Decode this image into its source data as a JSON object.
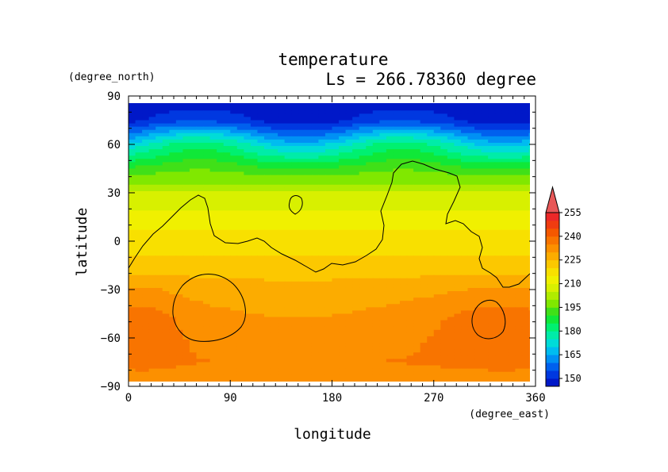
{
  "chart_data": {
    "type": "heatmap",
    "title": "temperature",
    "subtitle": "Ls = 266.78360 degree",
    "xlabel": "longitude",
    "ylabel": "latitude",
    "xunits": "(degree_east)",
    "yunits": "(degree_north)",
    "xlim": [
      0,
      360
    ],
    "ylim": [
      -90,
      90
    ],
    "xticks": [
      0,
      90,
      180,
      270,
      360
    ],
    "yticks": [
      90,
      60,
      30,
      0,
      -30,
      -60,
      -90
    ],
    "data_lat_range": [
      -87,
      87
    ],
    "colorbar": {
      "levels": [
        145,
        150,
        155,
        160,
        165,
        170,
        175,
        180,
        185,
        190,
        195,
        200,
        205,
        210,
        215,
        220,
        225,
        230,
        235,
        240,
        245,
        250,
        255,
        260
      ],
      "labels": [
        "150",
        "165",
        "180",
        "195",
        "210",
        "225",
        "240",
        "255"
      ],
      "extend": "max",
      "colors": [
        "#0018c8",
        "#0038e0",
        "#0060ee",
        "#0090f4",
        "#00bcf0",
        "#00dcd8",
        "#00eca8",
        "#00f070",
        "#10e838",
        "#40e018",
        "#80e800",
        "#b0ec00",
        "#d8f000",
        "#f0f000",
        "#f8e000",
        "#fcc800",
        "#fcac00",
        "#fc9000",
        "#f87400",
        "#f45800",
        "#f03c10",
        "#ec2828",
        "#e85858"
      ]
    },
    "temperature_by_latitude": [
      {
        "lat": 87,
        "value": 147
      },
      {
        "lat": 75,
        "value": 150
      },
      {
        "lat": 60,
        "value": 175
      },
      {
        "lat": 45,
        "value": 192
      },
      {
        "lat": 30,
        "value": 205
      },
      {
        "lat": 15,
        "value": 212
      },
      {
        "lat": 0,
        "value": 217
      },
      {
        "lat": -15,
        "value": 222
      },
      {
        "lat": -30,
        "value": 228
      },
      {
        "lat": -45,
        "value": 232
      },
      {
        "lat": -60,
        "value": 234
      },
      {
        "lat": -75,
        "value": 235
      },
      {
        "lat": -87,
        "value": 233
      }
    ]
  }
}
